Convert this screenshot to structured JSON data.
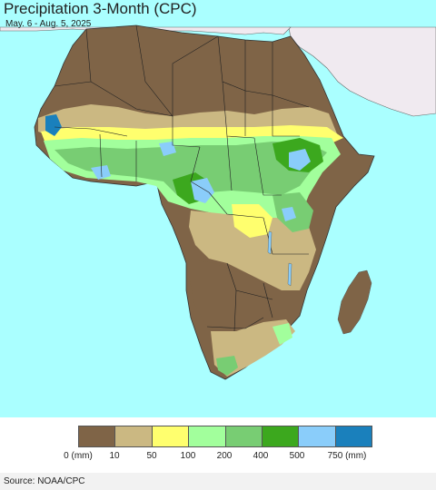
{
  "header": {
    "title": "Precipitation 3-Month (CPC)",
    "date_range": "May. 6 - Aug. 5, 2025"
  },
  "legend": {
    "colors": [
      "#7f6447",
      "#cbb882",
      "#ffff6e",
      "#a2ff9c",
      "#78cd73",
      "#3ca81e",
      "#8acdfa",
      "#1a80bc"
    ],
    "labels": [
      "0 (mm)",
      "10",
      "50",
      "100",
      "200",
      "400",
      "500",
      "750 (mm)"
    ]
  },
  "map": {
    "ocean_color": "#aaffff",
    "land_outside_color": "#f0eaf0",
    "region": "Africa"
  },
  "footer": {
    "source": "Source: NOAA/CPC"
  }
}
